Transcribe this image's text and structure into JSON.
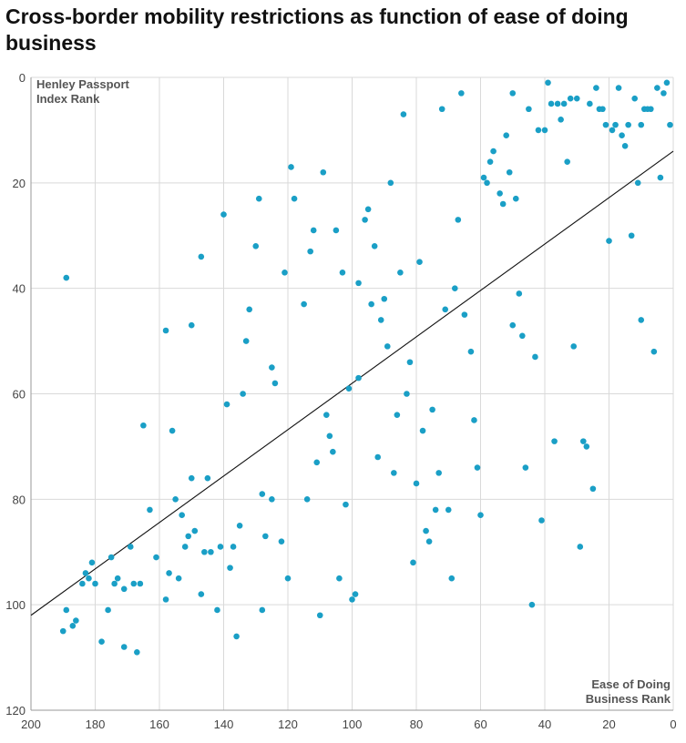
{
  "title": "Cross-border mobility restrictions as function of ease of doing business",
  "chart_data": {
    "type": "scatter",
    "title": "Cross-border mobility restrictions as function of ease of doing business",
    "xlabel": [
      "Ease of Doing",
      "Business Rank"
    ],
    "ylabel": [
      "Henley Passport",
      "Index Rank"
    ],
    "xlim": [
      200,
      0
    ],
    "ylim": [
      0,
      120
    ],
    "x_reversed": true,
    "y_reversed": true,
    "x_ticks": [
      200,
      180,
      160,
      140,
      120,
      100,
      80,
      60,
      40,
      20,
      0
    ],
    "y_ticks": [
      0,
      20,
      40,
      60,
      80,
      100,
      120
    ],
    "grid": true,
    "point_color": "#1a9fc6",
    "trend_color": "#111111",
    "trendline": [
      [
        200,
        102
      ],
      [
        0,
        14
      ]
    ],
    "points": [
      [
        189,
        38
      ],
      [
        181,
        92
      ],
      [
        184,
        96
      ],
      [
        182,
        95
      ],
      [
        183,
        94
      ],
      [
        180,
        96
      ],
      [
        175,
        91
      ],
      [
        173,
        95
      ],
      [
        174,
        96
      ],
      [
        171,
        97
      ],
      [
        169,
        89
      ],
      [
        168,
        96
      ],
      [
        166,
        96
      ],
      [
        176,
        101
      ],
      [
        178,
        107
      ],
      [
        171,
        108
      ],
      [
        167,
        109
      ],
      [
        189,
        101
      ],
      [
        190,
        105
      ],
      [
        187,
        104
      ],
      [
        186,
        103
      ],
      [
        163,
        82
      ],
      [
        161,
        91
      ],
      [
        158,
        99
      ],
      [
        157,
        94
      ],
      [
        154,
        95
      ],
      [
        155,
        80
      ],
      [
        153,
        83
      ],
      [
        151,
        87
      ],
      [
        152,
        89
      ],
      [
        149,
        86
      ],
      [
        147,
        98
      ],
      [
        146,
        90
      ],
      [
        144,
        90
      ],
      [
        165,
        66
      ],
      [
        156,
        67
      ],
      [
        150,
        76
      ],
      [
        145,
        76
      ],
      [
        158,
        48
      ],
      [
        150,
        47
      ],
      [
        147,
        34
      ],
      [
        140,
        26
      ],
      [
        139,
        62
      ],
      [
        134,
        60
      ],
      [
        133,
        50
      ],
      [
        132,
        44
      ],
      [
        130,
        32
      ],
      [
        129,
        23
      ],
      [
        119,
        17
      ],
      [
        118,
        23
      ],
      [
        121,
        37
      ],
      [
        115,
        43
      ],
      [
        113,
        33
      ],
      [
        112,
        29
      ],
      [
        109,
        18
      ],
      [
        105,
        29
      ],
      [
        103,
        37
      ],
      [
        96,
        27
      ],
      [
        95,
        25
      ],
      [
        93,
        32
      ],
      [
        98,
        39
      ],
      [
        94,
        43
      ],
      [
        91,
        46
      ],
      [
        90,
        42
      ],
      [
        89,
        51
      ],
      [
        88,
        20
      ],
      [
        84,
        7
      ],
      [
        85,
        37
      ],
      [
        79,
        35
      ],
      [
        98,
        57
      ],
      [
        101,
        59
      ],
      [
        124,
        58
      ],
      [
        125,
        55
      ],
      [
        108,
        64
      ],
      [
        107,
        68
      ],
      [
        106,
        71
      ],
      [
        111,
        73
      ],
      [
        114,
        80
      ],
      [
        102,
        81
      ],
      [
        128,
        79
      ],
      [
        125,
        80
      ],
      [
        135,
        85
      ],
      [
        137,
        89
      ],
      [
        141,
        89
      ],
      [
        138,
        93
      ],
      [
        142,
        101
      ],
      [
        136,
        106
      ],
      [
        128,
        101
      ],
      [
        127,
        87
      ],
      [
        122,
        88
      ],
      [
        120,
        95
      ],
      [
        104,
        95
      ],
      [
        110,
        102
      ],
      [
        99,
        98
      ],
      [
        100,
        99
      ],
      [
        92,
        72
      ],
      [
        87,
        75
      ],
      [
        86,
        64
      ],
      [
        83,
        60
      ],
      [
        82,
        54
      ],
      [
        81,
        92
      ],
      [
        80,
        77
      ],
      [
        78,
        67
      ],
      [
        77,
        86
      ],
      [
        76,
        88
      ],
      [
        75,
        63
      ],
      [
        74,
        82
      ],
      [
        73,
        75
      ],
      [
        70,
        82
      ],
      [
        69,
        95
      ],
      [
        68,
        40
      ],
      [
        71,
        44
      ],
      [
        67,
        27
      ],
      [
        65,
        45
      ],
      [
        63,
        52
      ],
      [
        62,
        65
      ],
      [
        61,
        74
      ],
      [
        60,
        83
      ],
      [
        66,
        3
      ],
      [
        72,
        6
      ],
      [
        57,
        16
      ],
      [
        56,
        14
      ],
      [
        58,
        20
      ],
      [
        59,
        19
      ],
      [
        54,
        22
      ],
      [
        53,
        24
      ],
      [
        52,
        11
      ],
      [
        51,
        18
      ],
      [
        49,
        23
      ],
      [
        50,
        3
      ],
      [
        50,
        47
      ],
      [
        48,
        41
      ],
      [
        47,
        49
      ],
      [
        46,
        74
      ],
      [
        45,
        6
      ],
      [
        43,
        53
      ],
      [
        44,
        100
      ],
      [
        42,
        10
      ],
      [
        41,
        84
      ],
      [
        40,
        10
      ],
      [
        39,
        1
      ],
      [
        38,
        5
      ],
      [
        37,
        69
      ],
      [
        36,
        5
      ],
      [
        35,
        8
      ],
      [
        34,
        5
      ],
      [
        33,
        16
      ],
      [
        32,
        4
      ],
      [
        31,
        51
      ],
      [
        30,
        4
      ],
      [
        29,
        89
      ],
      [
        28,
        69
      ],
      [
        27,
        70
      ],
      [
        26,
        5
      ],
      [
        25,
        78
      ],
      [
        24,
        2
      ],
      [
        23,
        6
      ],
      [
        22,
        6
      ],
      [
        21,
        9
      ],
      [
        20,
        31
      ],
      [
        19,
        10
      ],
      [
        18,
        9
      ],
      [
        17,
        2
      ],
      [
        16,
        11
      ],
      [
        15,
        13
      ],
      [
        14,
        9
      ],
      [
        13,
        30
      ],
      [
        12,
        4
      ],
      [
        11,
        20
      ],
      [
        10,
        9
      ],
      [
        10,
        46
      ],
      [
        9,
        6
      ],
      [
        8,
        6
      ],
      [
        7,
        6
      ],
      [
        6,
        52
      ],
      [
        5,
        2
      ],
      [
        4,
        19
      ],
      [
        3,
        3
      ],
      [
        2,
        1
      ],
      [
        1,
        9
      ]
    ]
  }
}
